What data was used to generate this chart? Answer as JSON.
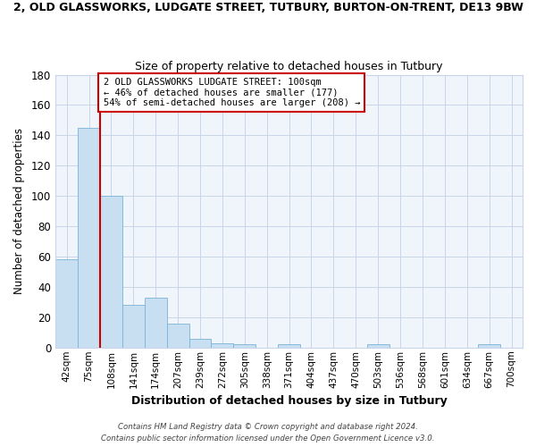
{
  "title_line1": "2, OLD GLASSWORKS, LUDGATE STREET, TUTBURY, BURTON-ON-TRENT, DE13 9BW",
  "title_line2": "Size of property relative to detached houses in Tutbury",
  "xlabel": "Distribution of detached houses by size in Tutbury",
  "ylabel": "Number of detached properties",
  "bin_labels": [
    "42sqm",
    "75sqm",
    "108sqm",
    "141sqm",
    "174sqm",
    "207sqm",
    "239sqm",
    "272sqm",
    "305sqm",
    "338sqm",
    "371sqm",
    "404sqm",
    "437sqm",
    "470sqm",
    "503sqm",
    "536sqm",
    "568sqm",
    "601sqm",
    "634sqm",
    "667sqm",
    "700sqm"
  ],
  "bar_heights": [
    58,
    145,
    100,
    28,
    33,
    16,
    6,
    3,
    2,
    0,
    2,
    0,
    0,
    0,
    2,
    0,
    0,
    0,
    0,
    2,
    0
  ],
  "bar_color": "#c8dff2",
  "bar_edge_color": "#7ab3d8",
  "red_line_bin": 2,
  "annotation_text": "2 OLD GLASSWORKS LUDGATE STREET: 100sqm\n← 46% of detached houses are smaller (177)\n54% of semi-detached houses are larger (208) →",
  "annotation_box_color": "#ffffff",
  "annotation_box_edge": "#cc0000",
  "ylim": [
    0,
    180
  ],
  "yticks": [
    0,
    20,
    40,
    60,
    80,
    100,
    120,
    140,
    160,
    180
  ],
  "footer_line1": "Contains HM Land Registry data © Crown copyright and database right 2024.",
  "footer_line2": "Contains public sector information licensed under the Open Government Licence v3.0.",
  "bg_color": "#ffffff",
  "plot_bg_color": "#f0f5fb",
  "grid_color": "#c8d4e8"
}
